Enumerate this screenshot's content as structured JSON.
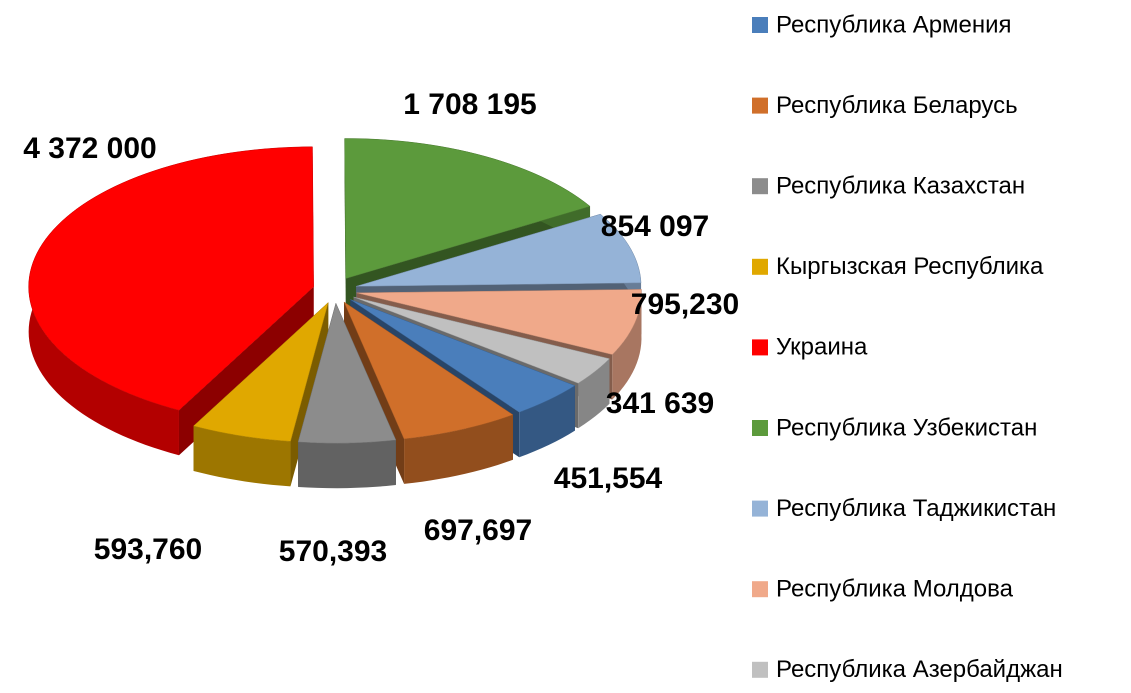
{
  "chart_data": {
    "type": "pie3d",
    "categories": [
      "Республика Армения",
      "Республика Беларусь",
      "Республика Казахстан",
      "Кыргызская Республика",
      "Украина",
      "Республика Узбекистан",
      "Республика Таджикистан",
      "Республика Молдова",
      "Республика Азербайджан"
    ],
    "values": [
      451554,
      697697,
      570393,
      593760,
      4372000,
      1708195,
      854097,
      795230,
      341639
    ],
    "value_labels": [
      "451,554",
      "697,697",
      "570,393",
      "593,760",
      "4 372 000",
      "1 708 195",
      "854 097",
      "795,230",
      "341 639"
    ],
    "colors": [
      "#4a7ebb",
      "#d06f2a",
      "#8c8c8c",
      "#e0a800",
      "#ff0000",
      "#5c9a3c",
      "#95b3d7",
      "#f0a98a",
      "#c0c0c0"
    ],
    "legend": "right"
  }
}
